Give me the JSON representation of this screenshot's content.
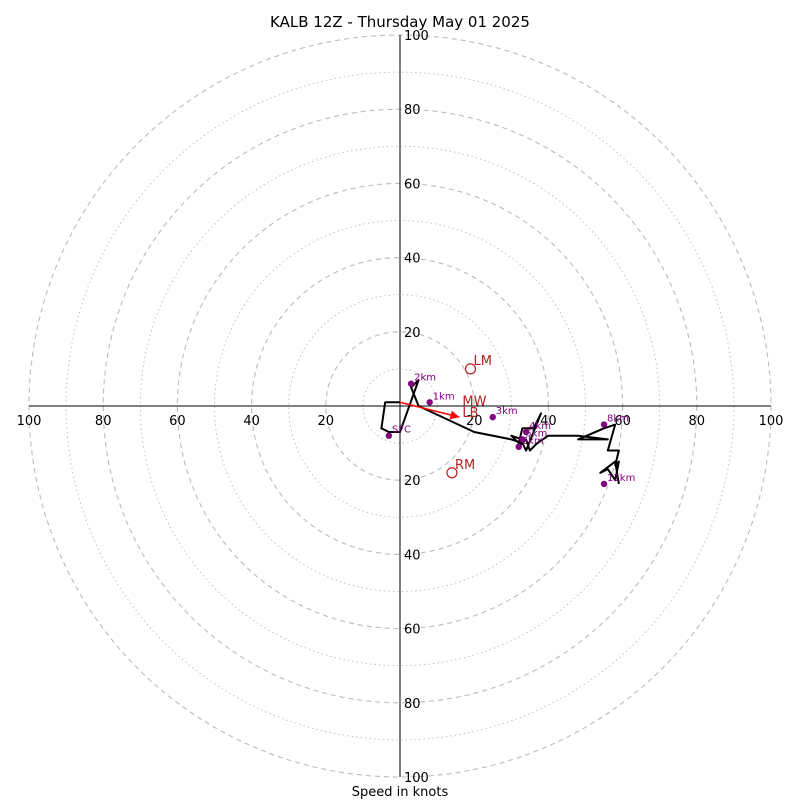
{
  "chart_data": {
    "type": "scatter",
    "subtype": "hodograph",
    "title": "KALB 12Z - Thursday May 01 2025",
    "xlabel": "Speed in knots",
    "ylabel": "",
    "xlim": [
      -100,
      100
    ],
    "ylim": [
      -100,
      100
    ],
    "ring_step_major": 20,
    "ring_step_minor": 10,
    "grid": true,
    "tick_labels_x": [
      "100",
      "80",
      "60",
      "40",
      "20",
      "20",
      "40",
      "60",
      "80",
      "100"
    ],
    "tick_labels_y": [
      "100",
      "80",
      "60",
      "40",
      "20",
      "20",
      "40",
      "60",
      "80",
      "100"
    ],
    "hodograph_trace": [
      [
        0,
        1
      ],
      [
        -4,
        1
      ],
      [
        -5,
        -6
      ],
      [
        -3,
        -7
      ],
      [
        0,
        -7
      ],
      [
        5,
        7
      ],
      [
        3,
        5
      ],
      [
        5,
        0
      ],
      [
        20,
        -7
      ],
      [
        30,
        -9
      ],
      [
        33,
        -10
      ],
      [
        34,
        -12
      ],
      [
        38,
        -2
      ],
      [
        36,
        -6
      ],
      [
        33,
        -6
      ],
      [
        32,
        -10
      ],
      [
        30,
        -8
      ],
      [
        33,
        -9
      ],
      [
        32,
        -11
      ],
      [
        34,
        -9
      ],
      [
        35,
        -12
      ],
      [
        37,
        -10
      ],
      [
        40,
        -8
      ],
      [
        48,
        -8
      ],
      [
        56,
        -9
      ],
      [
        48,
        -9
      ],
      [
        55,
        -6
      ],
      [
        58,
        -5
      ],
      [
        56,
        -12
      ],
      [
        59,
        -12
      ],
      [
        58,
        -16
      ],
      [
        59,
        -15
      ],
      [
        58,
        -20
      ],
      [
        56,
        -17
      ],
      [
        54,
        -18
      ],
      [
        58,
        -15
      ],
      [
        59,
        -21
      ]
    ],
    "height_markers": [
      {
        "label": "2km",
        "x": 3,
        "y": 6
      },
      {
        "label": "1km",
        "x": 8,
        "y": 1
      },
      {
        "label": "SFC",
        "x": -3,
        "y": -8
      },
      {
        "label": "3km",
        "x": 25,
        "y": -3
      },
      {
        "label": "4km",
        "x": 34,
        "y": -7
      },
      {
        "label": "5km",
        "x": 33,
        "y": -9
      },
      {
        "label": "6km",
        "x": 32,
        "y": -11
      },
      {
        "label": "8km",
        "x": 55,
        "y": -5
      },
      {
        "label": "12km",
        "x": 55,
        "y": -21
      }
    ],
    "mean_wind_vector": {
      "from": [
        0,
        1
      ],
      "to": [
        16,
        -3
      ]
    },
    "storm_motion": [
      {
        "label": "LM",
        "x": 19,
        "y": 10
      },
      {
        "label": "RM",
        "x": 14,
        "y": -18
      },
      {
        "label": "MW",
        "x": 16,
        "y": -1
      },
      {
        "label": "LB",
        "x": 16,
        "y": -4
      }
    ],
    "colors": {
      "trace": "#000000",
      "height_markers": "#800080",
      "storm_motion": "#b22222",
      "mean_wind": "#ff0000",
      "grid": "#bbbbbb"
    }
  }
}
